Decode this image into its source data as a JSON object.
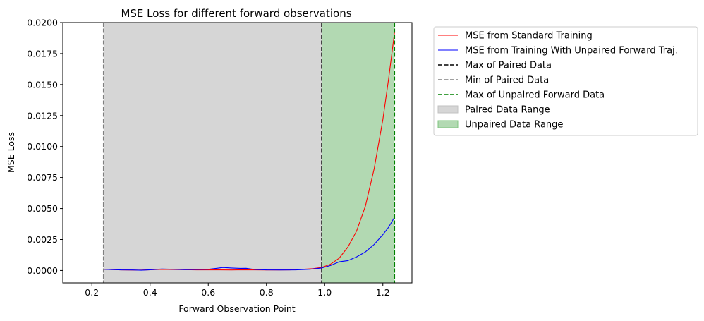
{
  "chart_data": {
    "type": "line",
    "title": "MSE Loss for different forward observations",
    "xlabel": "Forward Observation Point",
    "ylabel": "MSE Loss",
    "xlim": [
      0.1,
      1.3
    ],
    "ylim": [
      -0.001,
      0.02
    ],
    "xticks": [
      0.2,
      0.4,
      0.6,
      0.8,
      1.0,
      1.2
    ],
    "xtick_labels": [
      "0.2",
      "0.4",
      "0.6",
      "0.8",
      "1.0",
      "1.2"
    ],
    "yticks": [
      0.0,
      0.0025,
      0.005,
      0.0075,
      0.01,
      0.0125,
      0.015,
      0.0175,
      0.02
    ],
    "ytick_labels": [
      "0.0000",
      "0.0025",
      "0.0050",
      "0.0075",
      "0.0100",
      "0.0125",
      "0.0150",
      "0.0175",
      "0.0200"
    ],
    "grid": false,
    "legend_position": "outside-right",
    "series": [
      {
        "name": "MSE from Standard Training",
        "color": "#ff0000",
        "x": [
          0.24,
          0.3,
          0.36,
          0.4,
          0.44,
          0.5,
          0.56,
          0.6,
          0.64,
          0.68,
          0.72,
          0.76,
          0.8,
          0.84,
          0.88,
          0.92,
          0.96,
          0.99,
          1.02,
          1.05,
          1.08,
          1.11,
          1.14,
          1.17,
          1.2,
          1.22,
          1.24
        ],
        "y": [
          0.0001,
          5e-05,
          3e-05,
          6e-05,
          9e-05,
          7e-05,
          5e-05,
          6e-05,
          5e-05,
          4e-05,
          6e-05,
          5e-05,
          4e-05,
          4e-05,
          5e-05,
          9e-05,
          0.00015,
          0.00025,
          0.0005,
          0.001,
          0.0019,
          0.0032,
          0.0052,
          0.0082,
          0.0122,
          0.0155,
          0.0192
        ]
      },
      {
        "name": "MSE from Training With Unpaired Forward Traj.",
        "color": "#0000ff",
        "x": [
          0.24,
          0.3,
          0.34,
          0.37,
          0.4,
          0.44,
          0.48,
          0.52,
          0.56,
          0.6,
          0.63,
          0.65,
          0.68,
          0.71,
          0.73,
          0.76,
          0.8,
          0.85,
          0.9,
          0.95,
          0.99,
          1.02,
          1.05,
          1.08,
          1.11,
          1.14,
          1.17,
          1.2,
          1.22,
          1.24
        ],
        "y": [
          0.0001,
          5e-05,
          4e-05,
          2e-05,
          6e-05,
          0.00012,
          0.0001,
          7e-05,
          8e-05,
          0.0001,
          0.00018,
          0.00024,
          0.0002,
          0.00017,
          0.00018,
          8e-05,
          5e-05,
          4e-05,
          5e-05,
          0.0001,
          0.0002,
          0.0004,
          0.0007,
          0.0008,
          0.0011,
          0.0015,
          0.0021,
          0.0029,
          0.0035,
          0.0043
        ]
      }
    ],
    "vlines": [
      {
        "name": "Max of Paired Data",
        "x": 0.99,
        "color": "#000000"
      },
      {
        "name": "Min of Paired Data",
        "x": 0.24,
        "color": "#808080"
      },
      {
        "name": "Max of Unpaired Forward Data",
        "x": 1.24,
        "color": "#008000"
      }
    ],
    "spans": [
      {
        "name": "Paired Data Range",
        "x0": 0.24,
        "x1": 0.99,
        "fill": "#d6d6d6",
        "edge": "#c2c2c2"
      },
      {
        "name": "Unpaired Data Range",
        "x0": 0.99,
        "x1": 1.24,
        "fill": "#b2d9b2",
        "edge": "#7fc47f"
      }
    ],
    "legend": [
      {
        "label": "MSE from Standard Training",
        "kind": "line",
        "color": "#ff0000"
      },
      {
        "label": "MSE from Training With Unpaired Forward Traj.",
        "kind": "line",
        "color": "#0000ff"
      },
      {
        "label": "Max of Paired Data",
        "kind": "dashed",
        "color": "#000000"
      },
      {
        "label": "Min of Paired Data",
        "kind": "dashed",
        "color": "#808080"
      },
      {
        "label": "Max of Unpaired Forward Data",
        "kind": "dashed",
        "color": "#008000"
      },
      {
        "label": "Paired Data Range",
        "kind": "patch",
        "color": "#d6d6d6",
        "edge": "#c2c2c2"
      },
      {
        "label": "Unpaired Data Range",
        "kind": "patch",
        "color": "#b2d9b2",
        "edge": "#7fc47f"
      }
    ]
  }
}
